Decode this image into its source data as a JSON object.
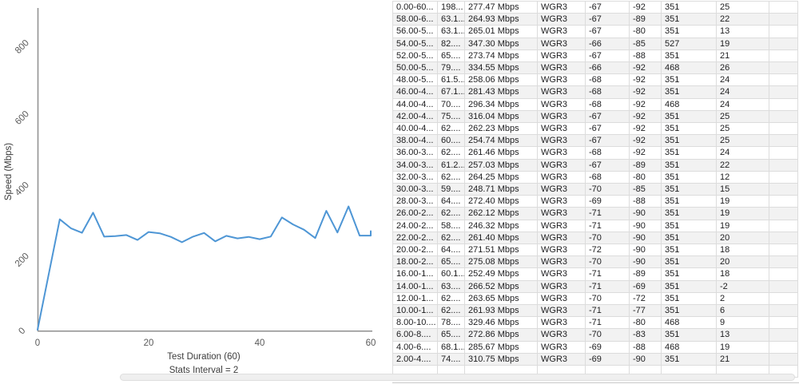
{
  "chart_data": {
    "type": "line",
    "title": "",
    "xlabel": "Test Duration (60)",
    "subtitle": "Stats Interval = 2",
    "ylabel": "Speed (Mbps)",
    "x": [
      0,
      4,
      6,
      8,
      10,
      12,
      14,
      16,
      18,
      20,
      22,
      24,
      26,
      28,
      30,
      32,
      34,
      36,
      38,
      40,
      42,
      44,
      46,
      48,
      50,
      52,
      54,
      56,
      58,
      60,
      60
    ],
    "y": [
      0,
      310.75,
      285.67,
      272.86,
      329.46,
      261.93,
      263.65,
      266.52,
      252.49,
      275.08,
      271.51,
      261.4,
      246.32,
      262.12,
      272.4,
      248.71,
      264.25,
      257.03,
      261.46,
      254.74,
      262.23,
      316.04,
      296.34,
      281.43,
      258.06,
      334.55,
      273.74,
      347.3,
      265.01,
      264.93,
      277.47
    ],
    "xticks": [
      0,
      20,
      40,
      60
    ],
    "yticks": [
      0,
      200,
      400,
      600,
      800
    ],
    "xlim": [
      0,
      60
    ],
    "ylim": [
      0,
      905
    ],
    "grid": false,
    "legend": "none",
    "line_color": "#4e96d5",
    "axis_color": "#8f8f8f",
    "tick_label_color": "#5a5a5a",
    "axis_title_color": "#3c3c3c"
  },
  "table": {
    "stripe_color": "#f2f2f2",
    "border_color": "#dcdcdc",
    "rows": [
      [
        "0.00-60...",
        "198...",
        "277.47 Mbps",
        "WGR3",
        "-67",
        "-92",
        "351",
        "25",
        ""
      ],
      [
        "58.00-6...",
        "63.1...",
        "264.93 Mbps",
        "WGR3",
        "-67",
        "-89",
        "351",
        "22",
        ""
      ],
      [
        "56.00-5...",
        "63.1...",
        "265.01 Mbps",
        "WGR3",
        "-67",
        "-80",
        "351",
        "13",
        ""
      ],
      [
        "54.00-5...",
        "82....",
        "347.30 Mbps",
        "WGR3",
        "-66",
        "-85",
        "527",
        "19",
        ""
      ],
      [
        "52.00-5...",
        "65....",
        "273.74 Mbps",
        "WGR3",
        "-67",
        "-88",
        "351",
        "21",
        ""
      ],
      [
        "50.00-5...",
        "79....",
        "334.55 Mbps",
        "WGR3",
        "-66",
        "-92",
        "468",
        "26",
        ""
      ],
      [
        "48.00-5...",
        "61.5...",
        "258.06 Mbps",
        "WGR3",
        "-68",
        "-92",
        "351",
        "24",
        ""
      ],
      [
        "46.00-4...",
        "67.1...",
        "281.43 Mbps",
        "WGR3",
        "-68",
        "-92",
        "351",
        "24",
        ""
      ],
      [
        "44.00-4...",
        "70....",
        "296.34 Mbps",
        "WGR3",
        "-68",
        "-92",
        "468",
        "24",
        ""
      ],
      [
        "42.00-4...",
        "75....",
        "316.04 Mbps",
        "WGR3",
        "-67",
        "-92",
        "351",
        "25",
        ""
      ],
      [
        "40.00-4...",
        "62....",
        "262.23 Mbps",
        "WGR3",
        "-67",
        "-92",
        "351",
        "25",
        ""
      ],
      [
        "38.00-4...",
        "60....",
        "254.74 Mbps",
        "WGR3",
        "-67",
        "-92",
        "351",
        "25",
        ""
      ],
      [
        "36.00-3...",
        "62....",
        "261.46 Mbps",
        "WGR3",
        "-68",
        "-92",
        "351",
        "24",
        ""
      ],
      [
        "34.00-3...",
        "61.2...",
        "257.03 Mbps",
        "WGR3",
        "-67",
        "-89",
        "351",
        "22",
        ""
      ],
      [
        "32.00-3...",
        "62....",
        "264.25 Mbps",
        "WGR3",
        "-68",
        "-80",
        "351",
        "12",
        ""
      ],
      [
        "30.00-3...",
        "59....",
        "248.71 Mbps",
        "WGR3",
        "-70",
        "-85",
        "351",
        "15",
        ""
      ],
      [
        "28.00-3...",
        "64....",
        "272.40 Mbps",
        "WGR3",
        "-69",
        "-88",
        "351",
        "19",
        ""
      ],
      [
        "26.00-2...",
        "62....",
        "262.12 Mbps",
        "WGR3",
        "-71",
        "-90",
        "351",
        "19",
        ""
      ],
      [
        "24.00-2...",
        "58....",
        "246.32 Mbps",
        "WGR3",
        "-71",
        "-90",
        "351",
        "19",
        ""
      ],
      [
        "22.00-2...",
        "62....",
        "261.40 Mbps",
        "WGR3",
        "-70",
        "-90",
        "351",
        "20",
        ""
      ],
      [
        "20.00-2...",
        "64....",
        "271.51 Mbps",
        "WGR3",
        "-72",
        "-90",
        "351",
        "18",
        ""
      ],
      [
        "18.00-2...",
        "65....",
        "275.08 Mbps",
        "WGR3",
        "-70",
        "-90",
        "351",
        "20",
        ""
      ],
      [
        "16.00-1...",
        "60.1...",
        "252.49 Mbps",
        "WGR3",
        "-71",
        "-89",
        "351",
        "18",
        ""
      ],
      [
        "14.00-1...",
        "63....",
        "266.52 Mbps",
        "WGR3",
        "-71",
        "-69",
        "351",
        "-2",
        ""
      ],
      [
        "12.00-1...",
        "62....",
        "263.65 Mbps",
        "WGR3",
        "-70",
        "-72",
        "351",
        "2",
        ""
      ],
      [
        "10.00-1...",
        "62....",
        "261.93 Mbps",
        "WGR3",
        "-71",
        "-77",
        "351",
        "6",
        ""
      ],
      [
        "8.00-10....",
        "78....",
        "329.46 Mbps",
        "WGR3",
        "-71",
        "-80",
        "468",
        "9",
        ""
      ],
      [
        "6.00-8....",
        "65....",
        "272.86 Mbps",
        "WGR3",
        "-70",
        "-83",
        "351",
        "13",
        ""
      ],
      [
        "4.00-6....",
        "68.1...",
        "285.67 Mbps",
        "WGR3",
        "-69",
        "-88",
        "468",
        "19",
        ""
      ],
      [
        "2.00-4....",
        "74....",
        "310.75 Mbps",
        "WGR3",
        "-69",
        "-90",
        "351",
        "21",
        ""
      ]
    ]
  }
}
